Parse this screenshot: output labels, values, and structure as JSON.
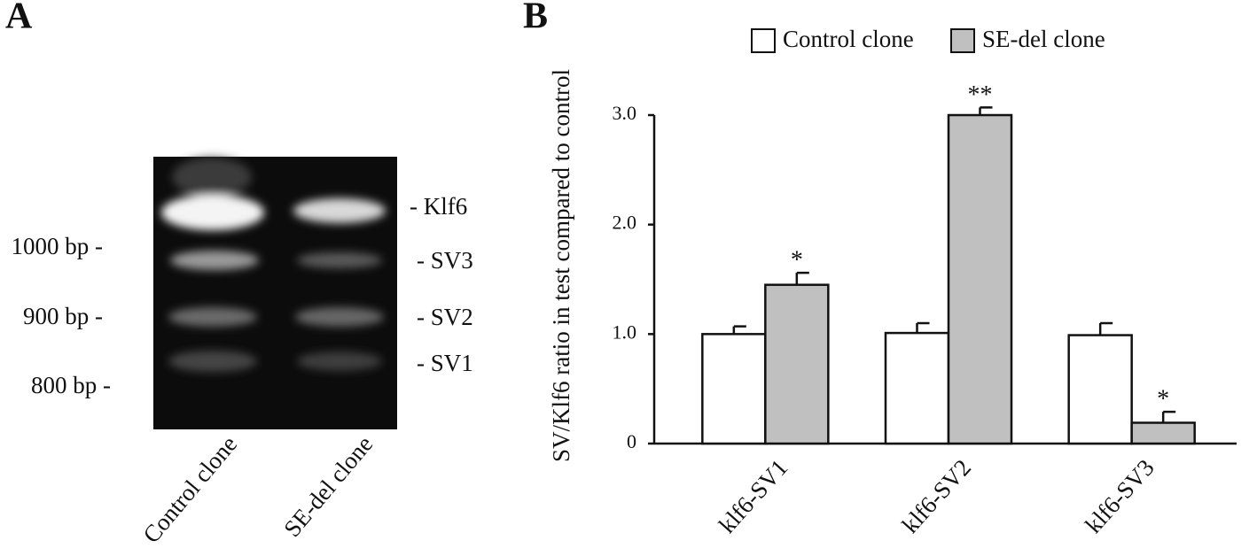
{
  "panel_a": {
    "label": "A",
    "markers": [
      "1000 bp -",
      "900 bp -",
      "800 bp -"
    ],
    "bands": [
      "- Klf6",
      "- SV3",
      "- SV2",
      "- SV1"
    ],
    "lanes": [
      "Control clone",
      "SE-del clone"
    ]
  },
  "chart_data": {
    "type": "bar",
    "panel_label": "B",
    "ylabel": "SV/Klf6 ratio in test compared to control",
    "categories": [
      "klf6-SV1",
      "klf6-SV2",
      "klf6-SV3"
    ],
    "series": [
      {
        "name": "Control clone",
        "color": "#ffffff",
        "values": [
          1.0,
          1.01,
          0.99
        ],
        "errors": [
          0.07,
          0.09,
          0.11
        ]
      },
      {
        "name": "SE-del clone",
        "color": "#c0c0c0",
        "values": [
          1.45,
          3.0,
          0.19
        ],
        "errors": [
          0.11,
          0.07,
          0.1
        ],
        "annotations": [
          "*",
          "**",
          "*"
        ]
      }
    ],
    "ylim": [
      0,
      3.0
    ],
    "yticks": [
      {
        "value": 0,
        "label": "0"
      },
      {
        "value": 1,
        "label": "1.0"
      },
      {
        "value": 2,
        "label": "2.0"
      },
      {
        "value": 3,
        "label": "3.0"
      }
    ],
    "grid": false
  }
}
